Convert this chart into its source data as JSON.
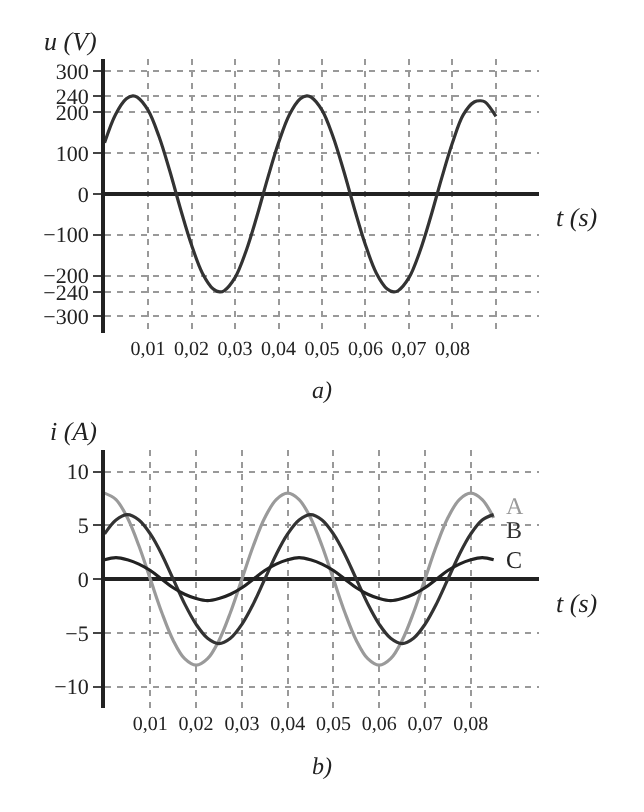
{
  "chart_data": [
    {
      "type": "line",
      "xlabel": "t (s)",
      "ylabel": "u (V)",
      "annotations": [
        "a)"
      ],
      "x": [
        0,
        0.0025,
        0.005,
        0.0065,
        0.0075,
        0.01,
        0.0125,
        0.015,
        0.0175,
        0.02,
        0.0225,
        0.025,
        0.0265,
        0.0275,
        0.03,
        0.0325,
        0.035,
        0.0375,
        0.04,
        0.0425,
        0.045,
        0.0465,
        0.0475,
        0.05,
        0.0525,
        0.055,
        0.0575,
        0.06,
        0.0625,
        0.065,
        0.0665,
        0.0675,
        0.07,
        0.0725,
        0.075,
        0.0775,
        0.08,
        0.0825,
        0.085,
        0.0865,
        0.0875,
        0.09
      ],
      "series": [
        {
          "color": "#333333",
          "values": [
            125,
            194,
            233,
            240,
            237,
            205,
            141,
            56,
            -38,
            -125,
            -194,
            -233,
            -240,
            -237,
            -205,
            -141,
            -56,
            38,
            125,
            194,
            233,
            240,
            237,
            205,
            141,
            56,
            -38,
            -125,
            -194,
            -233,
            -240,
            -237,
            -205,
            -141,
            -56,
            38,
            125,
            194,
            225,
            228,
            225,
            190
          ]
        }
      ],
      "xlim": [
        0,
        0.1
      ],
      "ylim": [
        -340,
        330
      ],
      "xticks": [
        {
          "value": 0.01,
          "label": "0,01"
        },
        {
          "value": 0.02,
          "label": "0,02"
        },
        {
          "value": 0.03,
          "label": "0,03"
        },
        {
          "value": 0.04,
          "label": "0,04"
        },
        {
          "value": 0.05,
          "label": "0,05"
        },
        {
          "value": 0.06,
          "label": "0,06"
        },
        {
          "value": 0.07,
          "label": "0,07"
        },
        {
          "value": 0.08,
          "label": "0,08"
        },
        {
          "value": 0.09,
          "label": null
        }
      ],
      "yticks": [
        300,
        240,
        200,
        100,
        0,
        -100,
        -200,
        -240,
        -300
      ],
      "grid": true
    },
    {
      "type": "line",
      "xlabel": "t (s)",
      "ylabel": "i (A)",
      "annotations": [
        "b)"
      ],
      "x": [
        0,
        0.0025,
        0.005,
        0.0075,
        0.01,
        0.0125,
        0.015,
        0.0175,
        0.02,
        0.0225,
        0.025,
        0.0275,
        0.03,
        0.0325,
        0.035,
        0.0375,
        0.04,
        0.0425,
        0.045,
        0.0475,
        0.05,
        0.0525,
        0.055,
        0.0575,
        0.06,
        0.0625,
        0.065,
        0.0675,
        0.07,
        0.0725,
        0.075,
        0.0775,
        0.08,
        0.0825,
        0.085
      ],
      "series": [
        {
          "name": "A",
          "color": "#9a9a9a",
          "values": [
            8,
            7.4,
            5.7,
            3.1,
            0,
            -3.1,
            -5.7,
            -7.4,
            -8,
            -7.4,
            -5.7,
            -3.1,
            0,
            3.1,
            5.7,
            7.4,
            8,
            7.4,
            5.7,
            3.1,
            0,
            -3.1,
            -5.7,
            -7.4,
            -8,
            -7.4,
            -5.7,
            -3.1,
            0,
            3.1,
            5.7,
            7.4,
            8,
            7.4,
            5.7
          ]
        },
        {
          "name": "B",
          "color": "#333333",
          "values": [
            4.2,
            5.5,
            6,
            5.5,
            4.2,
            2.3,
            0,
            -2.3,
            -4.2,
            -5.5,
            -6,
            -5.5,
            -4.2,
            -2.3,
            0,
            2.3,
            4.2,
            5.5,
            6,
            5.5,
            4.2,
            2.3,
            0,
            -2.3,
            -4.2,
            -5.5,
            -6,
            -5.5,
            -4.2,
            -2.3,
            0,
            2.3,
            4.2,
            5.5,
            6
          ]
        },
        {
          "name": "C",
          "color": "#222222",
          "values": [
            1.8,
            2,
            1.8,
            1.4,
            0.8,
            0,
            -0.8,
            -1.4,
            -1.8,
            -2,
            -1.8,
            -1.4,
            -0.8,
            0,
            0.8,
            1.4,
            1.8,
            2,
            1.8,
            1.4,
            0.8,
            0,
            -0.8,
            -1.4,
            -1.8,
            -2,
            -1.8,
            -1.4,
            -0.8,
            0,
            0.8,
            1.4,
            1.8,
            2,
            1.8
          ]
        }
      ],
      "xlim": [
        0,
        0.095
      ],
      "ylim": [
        -12,
        12
      ],
      "xticks": [
        {
          "value": 0.01,
          "label": "0,01"
        },
        {
          "value": 0.02,
          "label": "0,02"
        },
        {
          "value": 0.03,
          "label": "0,03"
        },
        {
          "value": 0.04,
          "label": "0,04"
        },
        {
          "value": 0.05,
          "label": "0,05"
        },
        {
          "value": 0.06,
          "label": "0,06"
        },
        {
          "value": 0.07,
          "label": "0,07"
        },
        {
          "value": 0.08,
          "label": "0,08"
        }
      ],
      "yticks": [
        10,
        5,
        0,
        -5,
        -10
      ],
      "grid": true
    }
  ]
}
